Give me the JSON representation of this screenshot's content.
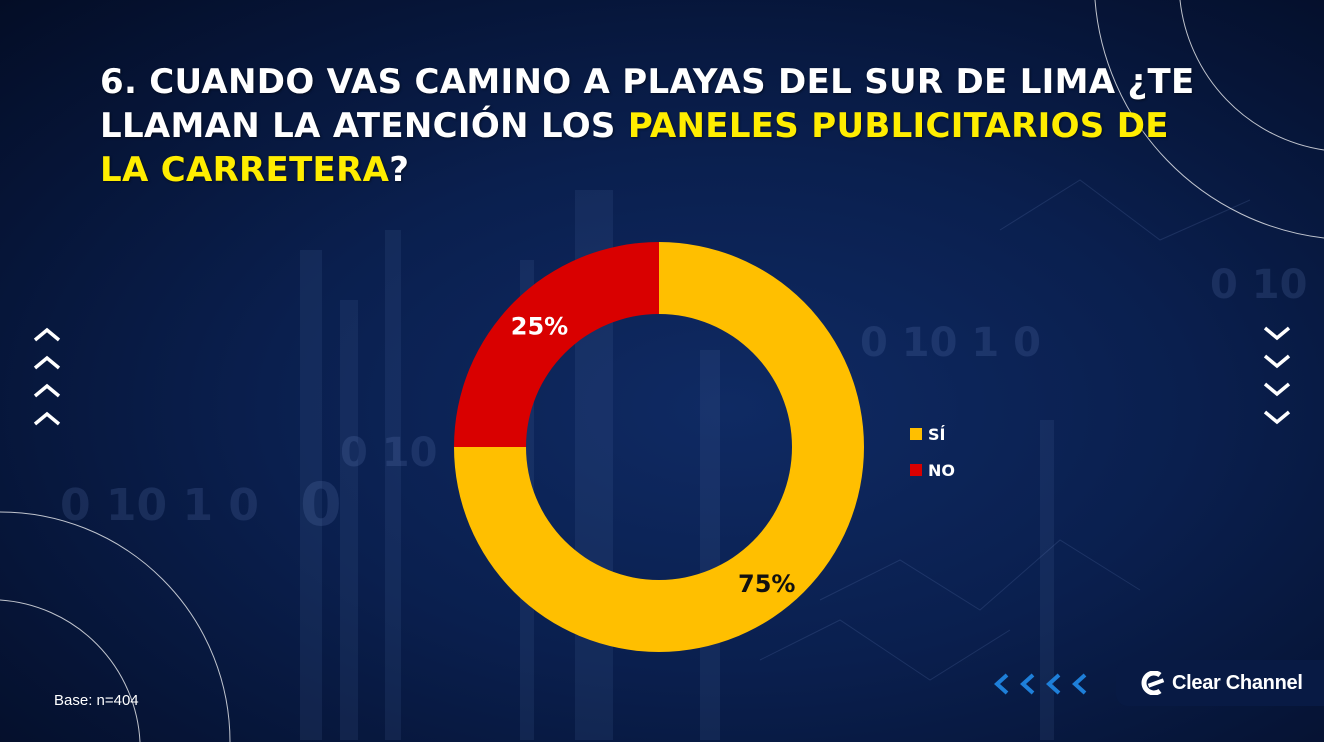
{
  "title": {
    "part1": "6. CUANDO VAS CAMINO A PLAYAS DEL SUR DE LIMA ¿TE LLAMAN LA ATENCIÓN LOS ",
    "highlight": "PANELES PUBLICITARIOS DE LA CARRETERA",
    "part2": "?"
  },
  "chart_data": {
    "type": "pie",
    "variant": "donut",
    "categories": [
      "SÍ",
      "NO"
    ],
    "values": [
      75,
      25
    ],
    "labels": [
      "75%",
      "25%"
    ],
    "colors": [
      "#ffbf00",
      "#d90000"
    ],
    "legend_position": "right"
  },
  "base_note": "Base: n=404",
  "logo": {
    "text": "Clear Channel",
    "icon": "clear-channel-logo-icon"
  },
  "decor": {
    "left_icons": "chevron-up-icon",
    "right_icons": "chevron-down-icon",
    "bottom_icons": "chevron-left-icon",
    "accent": "#1e7fd9"
  }
}
